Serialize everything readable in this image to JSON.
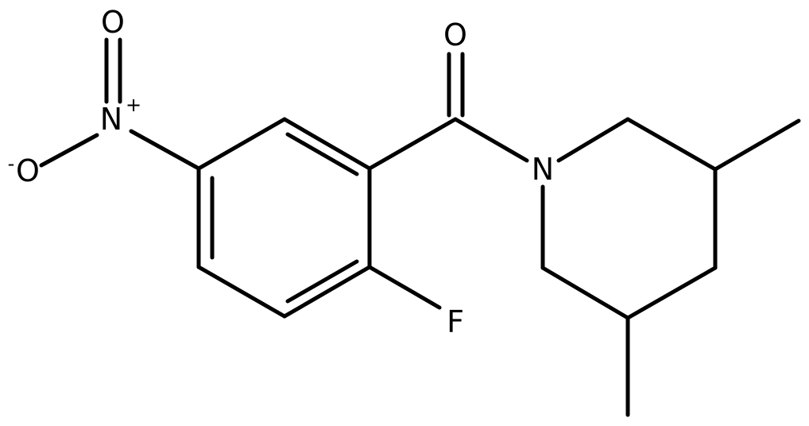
{
  "atoms": [
    {
      "label": "O"
    },
    {
      "label": "N",
      "charge": "+"
    },
    {
      "label": "O",
      "charge": "-"
    },
    {
      "label": "O"
    },
    {
      "label": "N"
    },
    {
      "label": "F"
    }
  ]
}
